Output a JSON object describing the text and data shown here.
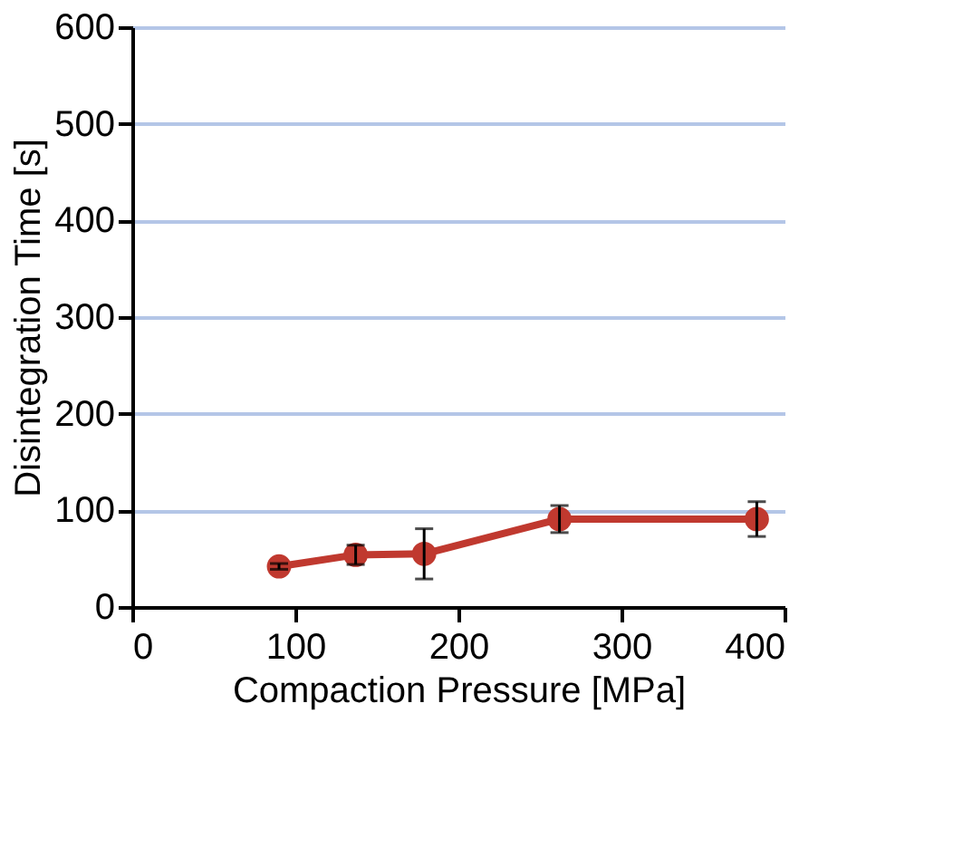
{
  "chart_data": {
    "type": "line",
    "xlabel": "Compaction Pressure [MPa]",
    "ylabel": "Disintegration Time [s]",
    "x": [
      90,
      137,
      179,
      262,
      383
    ],
    "series": [
      {
        "color": "#c0392f",
        "values": [
          42,
          54,
          55,
          91,
          91
        ],
        "errors": [
          3,
          10,
          26,
          14,
          18
        ]
      }
    ],
    "xlim": [
      0,
      400
    ],
    "xticks": [
      0,
      100,
      200,
      300,
      400
    ],
    "ylim": [
      0,
      600
    ],
    "yticks": [
      0,
      100,
      200,
      300,
      400,
      500,
      600
    ],
    "grid": "y",
    "marker": "circle",
    "line_style": "solid"
  }
}
